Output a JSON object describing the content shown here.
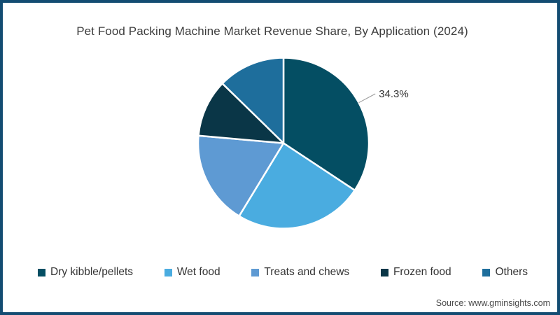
{
  "source": "Source: www.gminsights.com",
  "colors": {
    "frame_border": "#134C72",
    "title_text": "#3C3C3C",
    "legend_text": "#333333",
    "data_label_text": "#333333",
    "leader_line": "#999999",
    "slice_separator": "#FFFFFF",
    "source_text": "#4A4A4A",
    "background": "#FFFFFF"
  },
  "chart_data": {
    "type": "pie",
    "title": "Pet Food Packing Machine Market Revenue Share, By Application (2024)",
    "legend_position": "bottom",
    "start_angle_deg": 0,
    "direction": "clockwise",
    "grid": false,
    "slices": [
      {
        "label": "Dry kibble/pellets",
        "value": 34.3,
        "color": "#044E63",
        "data_label": "34.3%"
      },
      {
        "label": "Wet food",
        "value": 24.4,
        "color": "#4AACE0"
      },
      {
        "label": "Treats and chews",
        "value": 17.7,
        "color": "#5E9AD3"
      },
      {
        "label": "Frozen food",
        "value": 10.9,
        "color": "#0A3647"
      },
      {
        "label": "Others",
        "value": 12.7,
        "color": "#1E6E9C"
      }
    ]
  }
}
